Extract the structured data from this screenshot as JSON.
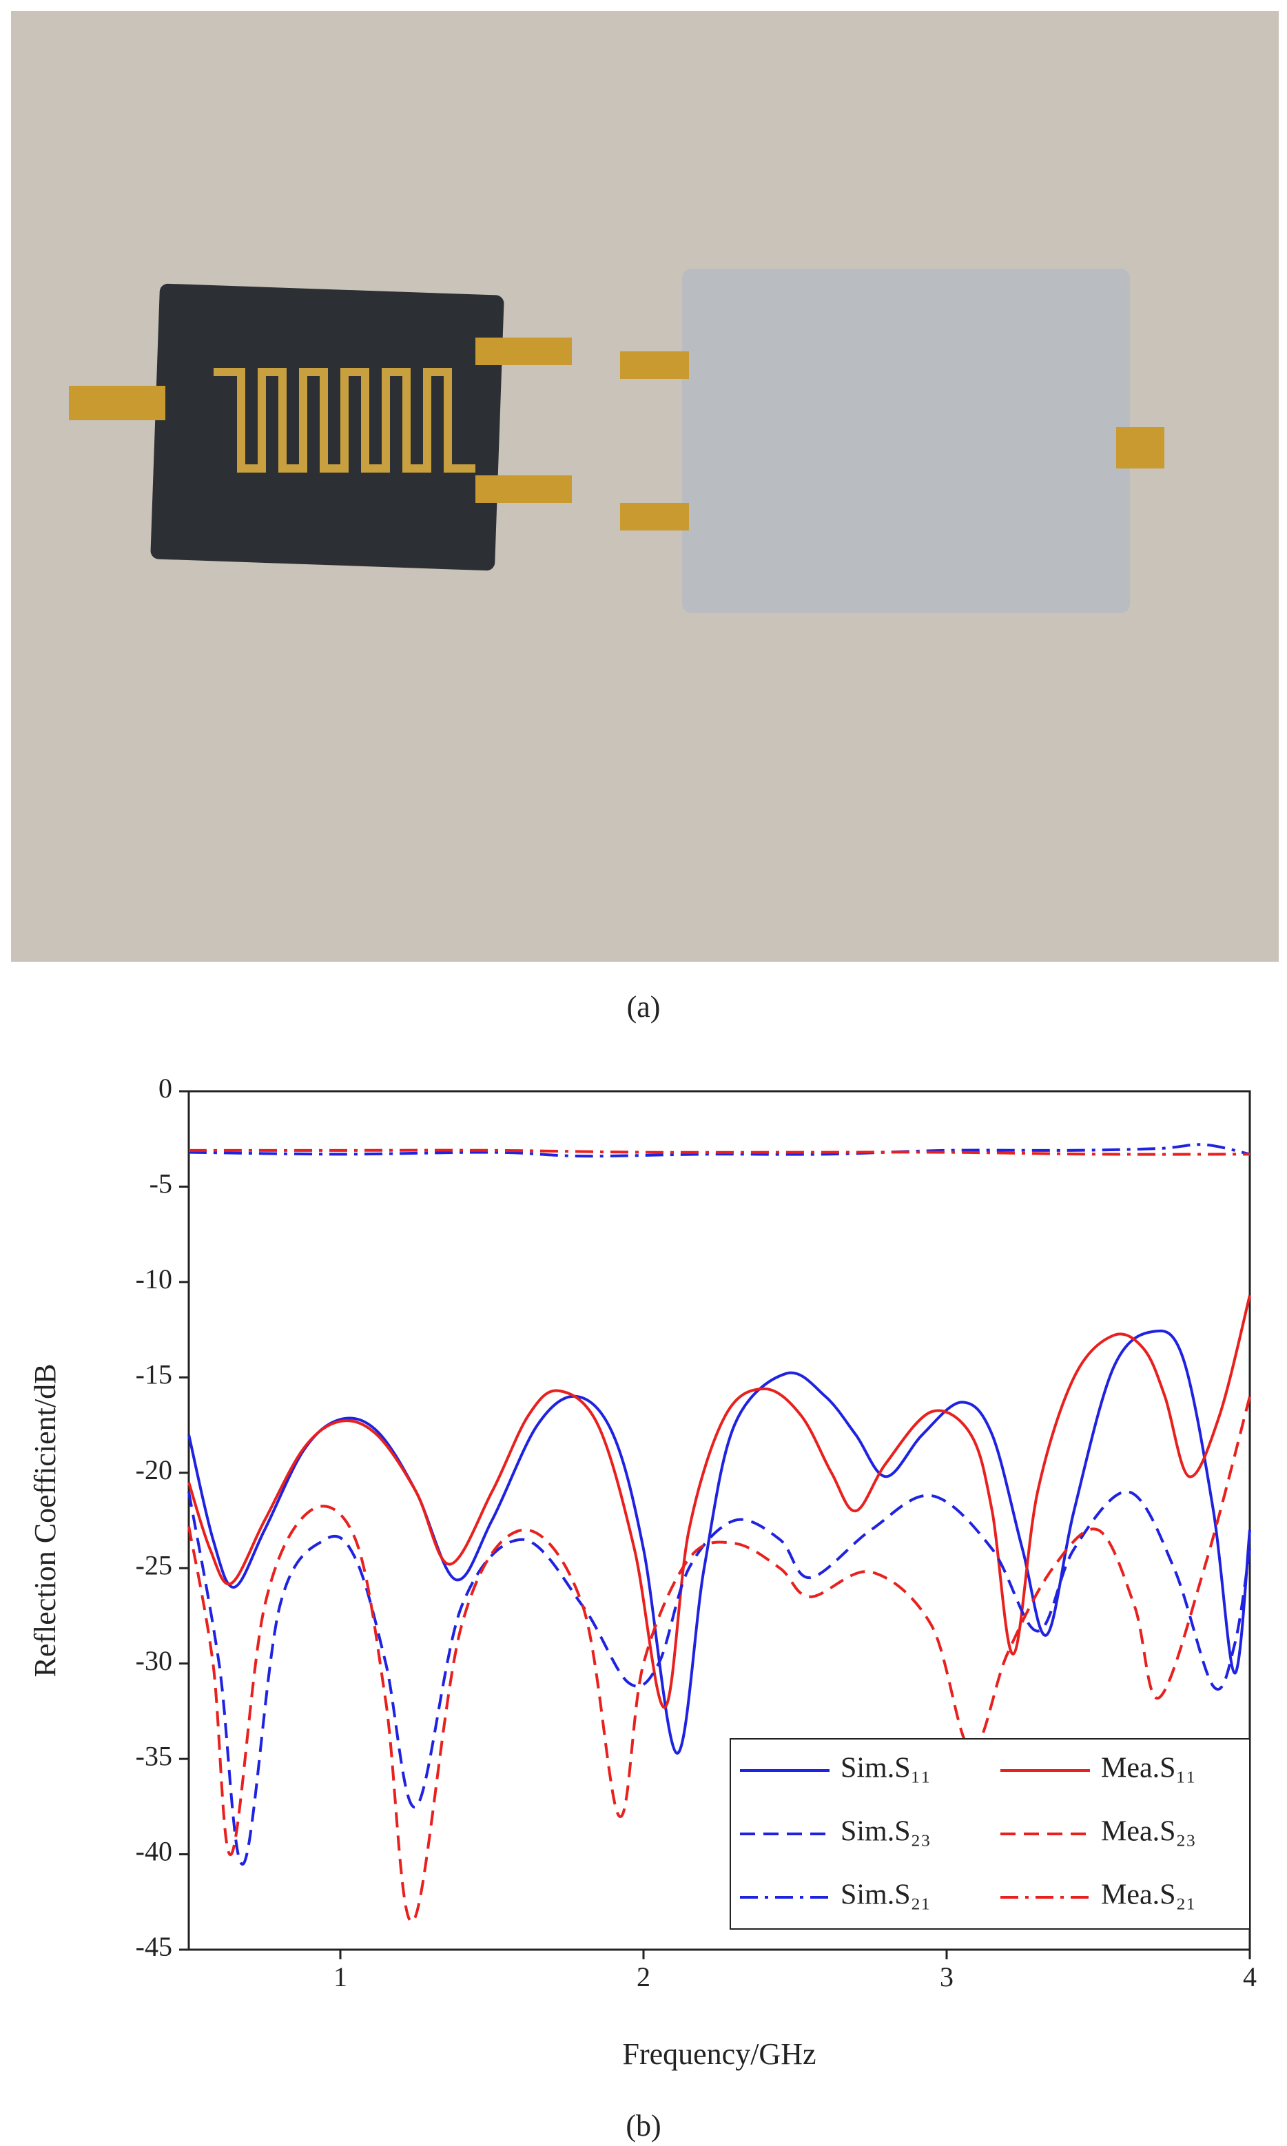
{
  "captions": [
    "(a)",
    "(b)"
  ],
  "chart_data": {
    "type": "line",
    "y_label": "Reflection Coefficient/dB",
    "x_label": "Frequency/GHz",
    "xlim": [
      0.5,
      4
    ],
    "xticks": [
      1,
      2,
      3,
      4
    ],
    "ylim": [
      -45,
      0
    ],
    "yticks": [
      0,
      -5,
      -10,
      -15,
      -20,
      -25,
      -30,
      -35,
      -40,
      -45
    ],
    "legend": "lower right",
    "series": [
      {
        "name": "Sim.S₁₁",
        "color": "#1f22e0",
        "dash": "solid",
        "x": [
          0.5,
          0.58,
          0.65,
          0.75,
          0.88,
          1.0,
          1.12,
          1.25,
          1.38,
          1.5,
          1.65,
          1.78,
          1.9,
          2.0,
          2.11,
          2.2,
          2.3,
          2.47,
          2.6,
          2.7,
          2.8,
          2.92,
          3.05,
          3.15,
          3.25,
          3.33,
          3.42,
          3.55,
          3.68,
          3.78,
          3.88,
          3.95,
          4.0
        ],
        "values": [
          -18,
          -23.5,
          -26,
          -23,
          -18.8,
          -17.2,
          -17.8,
          -21,
          -25.6,
          -22.5,
          -17.5,
          -16,
          -18,
          -24,
          -34.7,
          -25,
          -17.5,
          -14.8,
          -16,
          -18,
          -20.2,
          -18,
          -16.3,
          -18,
          -24,
          -28.5,
          -22,
          -14.5,
          -12.6,
          -14,
          -22,
          -30.5,
          -23
        ]
      },
      {
        "name": "Mea.S₁₁",
        "color": "#e8201e",
        "dash": "solid",
        "x": [
          0.5,
          0.57,
          0.64,
          0.75,
          0.88,
          1.0,
          1.12,
          1.25,
          1.36,
          1.5,
          1.62,
          1.72,
          1.85,
          1.97,
          2.07,
          2.15,
          2.27,
          2.4,
          2.52,
          2.62,
          2.7,
          2.8,
          2.95,
          3.08,
          3.15,
          3.22,
          3.3,
          3.42,
          3.55,
          3.65,
          3.72,
          3.8,
          3.9,
          4.0
        ],
        "values": [
          -20.5,
          -24,
          -25.8,
          -22.5,
          -18.7,
          -17.3,
          -18,
          -21,
          -24.8,
          -21,
          -17,
          -15.7,
          -17.5,
          -24,
          -32.3,
          -23,
          -17,
          -15.6,
          -17,
          -20,
          -22,
          -19.5,
          -16.8,
          -18,
          -22,
          -29.5,
          -21,
          -15,
          -12.8,
          -13.5,
          -16,
          -20.2,
          -17,
          -10.7
        ]
      },
      {
        "name": "Sim.S₂₃",
        "color": "#1f22e0",
        "dash": "dash",
        "x": [
          0.5,
          0.6,
          0.68,
          0.8,
          0.95,
          1.05,
          1.15,
          1.25,
          1.4,
          1.6,
          1.8,
          1.95,
          2.05,
          2.15,
          2.3,
          2.45,
          2.55,
          2.75,
          2.95,
          3.15,
          3.3,
          3.42,
          3.6,
          3.75,
          3.88,
          3.95,
          4.0
        ],
        "values": [
          -21,
          -30,
          -40.5,
          -27,
          -23.5,
          -24.5,
          -30,
          -37.5,
          -27,
          -23.5,
          -27,
          -31,
          -30,
          -25,
          -22.5,
          -23.5,
          -25.5,
          -23,
          -21.2,
          -24,
          -28.3,
          -24,
          -21,
          -25,
          -31.2,
          -29,
          -24
        ]
      },
      {
        "name": "Mea.S₂₃",
        "color": "#e8201e",
        "dash": "dash",
        "x": [
          0.5,
          0.58,
          0.64,
          0.75,
          0.9,
          1.05,
          1.15,
          1.24,
          1.4,
          1.6,
          1.8,
          1.92,
          2.0,
          2.15,
          2.3,
          2.45,
          2.55,
          2.75,
          2.95,
          3.08,
          3.2,
          3.35,
          3.5,
          3.62,
          3.7,
          3.85,
          4.0
        ],
        "values": [
          -22.8,
          -30,
          -40,
          -27,
          -22,
          -23.5,
          -32,
          -43.5,
          -28,
          -23,
          -27,
          -38,
          -30,
          -24.5,
          -23.7,
          -25,
          -26.5,
          -25.2,
          -28,
          -34.5,
          -29.5,
          -25,
          -23,
          -27,
          -31.8,
          -25,
          -16
        ]
      },
      {
        "name": "Sim.S₂₁",
        "color": "#1f22e0",
        "dash": "dashdot",
        "x": [
          0.5,
          1.0,
          1.5,
          1.8,
          2.2,
          2.6,
          3.0,
          3.4,
          3.7,
          3.85,
          4.0
        ],
        "values": [
          -3.2,
          -3.3,
          -3.2,
          -3.4,
          -3.3,
          -3.3,
          -3.1,
          -3.1,
          -3.0,
          -2.8,
          -3.3
        ]
      },
      {
        "name": "Mea.S₂₁",
        "color": "#e8201e",
        "dash": "dashdot",
        "x": [
          0.5,
          1.0,
          1.5,
          2.0,
          2.5,
          3.0,
          3.5,
          4.0
        ],
        "values": [
          -3.1,
          -3.1,
          -3.1,
          -3.2,
          -3.2,
          -3.2,
          -3.3,
          -3.3
        ]
      }
    ]
  }
}
